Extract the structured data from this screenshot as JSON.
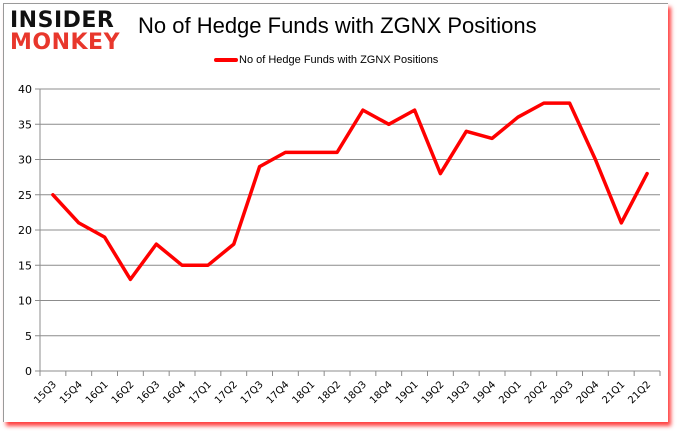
{
  "logo": {
    "line1": "INSIDER",
    "line2": "MONKEY"
  },
  "chart_data": {
    "type": "line",
    "title": "No of Hedge Funds with ZGNX Positions",
    "xlabel": "",
    "ylabel": "",
    "ylim": [
      0,
      40
    ],
    "yticks": [
      0,
      5,
      10,
      15,
      20,
      25,
      30,
      35,
      40
    ],
    "grid": true,
    "legend_position": "top",
    "categories": [
      "15Q3",
      "15Q4",
      "16Q1",
      "16Q2",
      "16Q3",
      "16Q4",
      "17Q1",
      "17Q2",
      "17Q3",
      "17Q4",
      "18Q1",
      "18Q2",
      "18Q3",
      "18Q4",
      "19Q1",
      "19Q2",
      "19Q3",
      "19Q4",
      "20Q1",
      "20Q2",
      "20Q3",
      "20Q4",
      "21Q1",
      "21Q2"
    ],
    "series": [
      {
        "name": "No of Hedge Funds with ZGNX Positions",
        "color": "#ff0000",
        "values": [
          25,
          21,
          19,
          13,
          18,
          15,
          15,
          18,
          29,
          31,
          31,
          31,
          37,
          35,
          37,
          28,
          34,
          33,
          36,
          38,
          38,
          30,
          21,
          28
        ]
      }
    ]
  }
}
